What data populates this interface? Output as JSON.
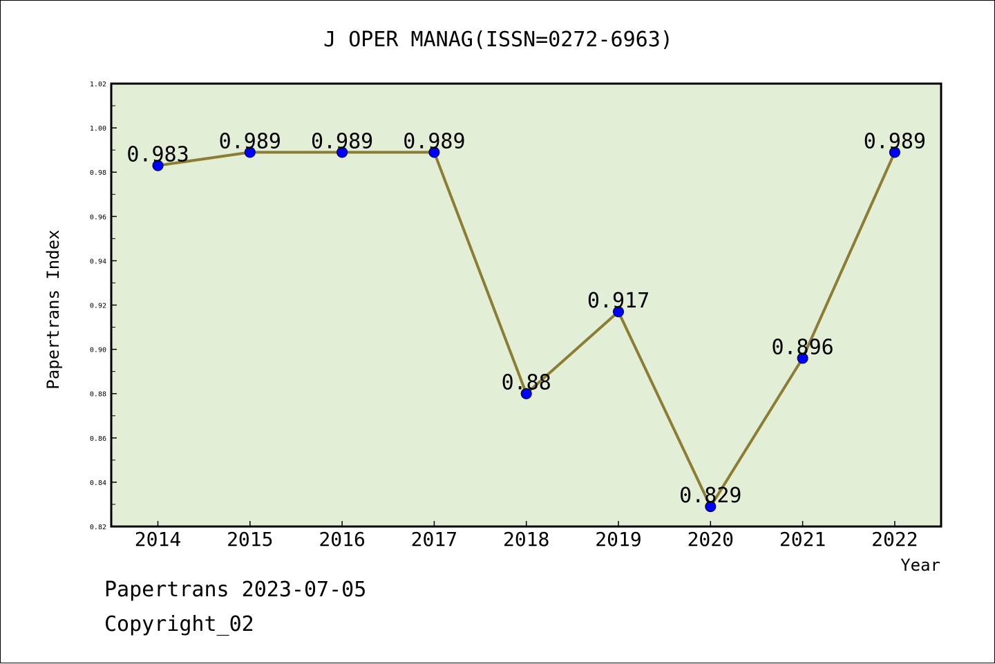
{
  "chart_data": {
    "type": "line",
    "title": "J OPER MANAG(ISSN=0272-6963)",
    "xlabel": "Year",
    "ylabel": "Papertrans Index",
    "categories": [
      "2014",
      "2015",
      "2016",
      "2017",
      "2018",
      "2019",
      "2020",
      "2021",
      "2022"
    ],
    "series": [
      {
        "values": [
          0.983,
          0.989,
          0.989,
          0.989,
          0.88,
          0.917,
          0.829,
          0.896,
          0.989
        ],
        "data_labels": [
          "0.983",
          "0.989",
          "0.989",
          "0.989",
          "0.88",
          "0.917",
          "0.829",
          "0.896",
          "0.989"
        ]
      }
    ],
    "ylim": [
      0.82,
      1.02
    ],
    "y_ticks": [
      "0.82",
      "0.84",
      "0.86",
      "0.88",
      "0.90",
      "0.92",
      "0.94",
      "0.96",
      "0.98",
      "1.00",
      "1.02"
    ],
    "grid": false,
    "colors": {
      "plot_background": "#e2efd6",
      "line": "#8b7d34",
      "marker": "#0000ff"
    }
  },
  "footer": {
    "line1": "Papertrans 2023-07-05",
    "line2": "Copyright_02"
  }
}
